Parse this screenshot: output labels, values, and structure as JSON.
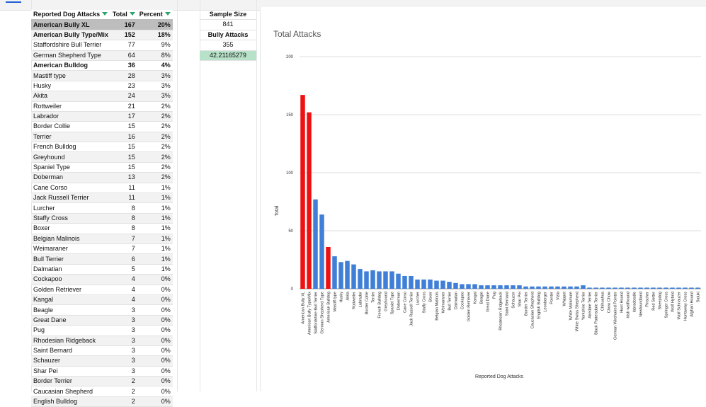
{
  "table": {
    "headers": [
      "Reported Dog Attacks",
      "Total",
      "Percent"
    ],
    "rows": [
      {
        "name": "American Bully XL",
        "total": "167",
        "pct": "20%",
        "bold": true,
        "sel": true
      },
      {
        "name": "American Bully Type/Mix",
        "total": "152",
        "pct": "18%",
        "bold": true
      },
      {
        "name": "Staffordshire Bull Terrier",
        "total": "77",
        "pct": "9%"
      },
      {
        "name": "German Shepherd Type",
        "total": "64",
        "pct": "8%"
      },
      {
        "name": "American Bulldog",
        "total": "36",
        "pct": "4%",
        "bold": true
      },
      {
        "name": "Mastiff type",
        "total": "28",
        "pct": "3%"
      },
      {
        "name": "Husky",
        "total": "23",
        "pct": "3%"
      },
      {
        "name": "Akita",
        "total": "24",
        "pct": "3%"
      },
      {
        "name": "Rottweiler",
        "total": "21",
        "pct": "2%"
      },
      {
        "name": "Labrador",
        "total": "17",
        "pct": "2%"
      },
      {
        "name": "Border Collie",
        "total": "15",
        "pct": "2%"
      },
      {
        "name": "Terrier",
        "total": "16",
        "pct": "2%"
      },
      {
        "name": "French Bulldog",
        "total": "15",
        "pct": "2%"
      },
      {
        "name": "Greyhound",
        "total": "15",
        "pct": "2%"
      },
      {
        "name": "Spaniel Type",
        "total": "15",
        "pct": "2%"
      },
      {
        "name": "Doberman",
        "total": "13",
        "pct": "2%"
      },
      {
        "name": "Cane Corso",
        "total": "11",
        "pct": "1%"
      },
      {
        "name": "Jack Russell Terrier",
        "total": "11",
        "pct": "1%"
      },
      {
        "name": "Lurcher",
        "total": "8",
        "pct": "1%"
      },
      {
        "name": "Staffy Cross",
        "total": "8",
        "pct": "1%"
      },
      {
        "name": "Boxer",
        "total": "8",
        "pct": "1%"
      },
      {
        "name": "Belgian Malinois",
        "total": "7",
        "pct": "1%"
      },
      {
        "name": "Weimaraner",
        "total": "7",
        "pct": "1%"
      },
      {
        "name": "Bull Terrier",
        "total": "6",
        "pct": "1%"
      },
      {
        "name": "Dalmatian",
        "total": "5",
        "pct": "1%"
      },
      {
        "name": "Cockapoo",
        "total": "4",
        "pct": "0%"
      },
      {
        "name": "Golden Retriever",
        "total": "4",
        "pct": "0%"
      },
      {
        "name": "Kangal",
        "total": "4",
        "pct": "0%"
      },
      {
        "name": "Beagle",
        "total": "3",
        "pct": "0%"
      },
      {
        "name": "Great Dane",
        "total": "3",
        "pct": "0%"
      },
      {
        "name": "Pug",
        "total": "3",
        "pct": "0%"
      },
      {
        "name": "Rhodesian Ridgeback",
        "total": "3",
        "pct": "0%"
      },
      {
        "name": "Saint Bernard",
        "total": "3",
        "pct": "0%"
      },
      {
        "name": "Schauzer",
        "total": "3",
        "pct": "0%"
      },
      {
        "name": "Shar Pei",
        "total": "3",
        "pct": "0%"
      },
      {
        "name": "Border Terrier",
        "total": "2",
        "pct": "0%"
      },
      {
        "name": "Caucasian Shepherd",
        "total": "2",
        "pct": "0%"
      },
      {
        "name": "English Bulldog",
        "total": "2",
        "pct": "0%"
      }
    ]
  },
  "side": {
    "sample_label": "Sample Size",
    "sample_value": "841",
    "bully_label": "Bully Attacks",
    "bully_value": "355",
    "percent_value": "42.21165279"
  },
  "colors": {
    "highlight": "#ee1111",
    "bar": "#3f7fd8"
  },
  "chart_data": {
    "type": "bar",
    "title": "Total Attacks",
    "xlabel": "Reported Dog Attacks",
    "ylabel": "Total",
    "ylim": [
      0,
      200
    ],
    "yticks": [
      0,
      50,
      100,
      150,
      200
    ],
    "grid": true,
    "categories": [
      "American Bully XL",
      "American Bully Type/Mix",
      "Staffordshire Bull Terrier",
      "German Shepherd Type",
      "American Bulldog",
      "Mastiff type",
      "Husky",
      "Akita",
      "Rottweiler",
      "Labrador",
      "Border Collie",
      "Terrier",
      "French Bulldog",
      "Greyhound",
      "Spaniel Type",
      "Doberman",
      "Cane Corso",
      "Jack Russell Terrier",
      "Lurcher",
      "Staffy Cross",
      "Boxer",
      "Belgian Malinois",
      "Weimaraner",
      "Bull Terrier",
      "Dalmatian",
      "Cockapoo",
      "Golden Retriever",
      "Kangal",
      "Beagle",
      "Great Dane",
      "Pug",
      "Rhodesian Ridgeback",
      "Saint Bernard",
      "Schauzer",
      "Shar Pei",
      "Border Terrier",
      "Caucasian Shepherd",
      "English Bulldog",
      "Leonberger",
      "Pointer",
      "Vizla",
      "Whippet",
      "White Malamute",
      "White Swiss Shepherd",
      "Yorkshire Terrier",
      "Airedale Terrier",
      "Black Pattersdale Terrier",
      "Chihuahua",
      "Chow Chow",
      "German Wirehaired Pointer",
      "Hunt Hound",
      "Irish wolfhound",
      "labradoodle",
      "Newfoundland",
      "Pinscher",
      "Red Setter",
      "Sheepdog",
      "Springer Cross",
      "Wolf Hybrid",
      "Wolf Schnauzer",
      "Huntaway Cross",
      "Afghan Hound",
      "Saluki"
    ],
    "values": [
      167,
      152,
      77,
      64,
      36,
      28,
      23,
      24,
      21,
      17,
      15,
      16,
      15,
      15,
      15,
      13,
      11,
      11,
      8,
      8,
      8,
      7,
      7,
      6,
      5,
      4,
      4,
      4,
      3,
      3,
      3,
      3,
      3,
      3,
      3,
      2,
      2,
      2,
      2,
      2,
      2,
      2,
      2,
      2,
      3,
      1,
      1,
      1,
      1,
      1,
      1,
      1,
      1,
      1,
      1,
      1,
      1,
      1,
      1,
      1,
      1,
      1,
      1
    ],
    "highlighted": [
      "American Bully XL",
      "American Bully Type/Mix",
      "American Bulldog"
    ]
  }
}
